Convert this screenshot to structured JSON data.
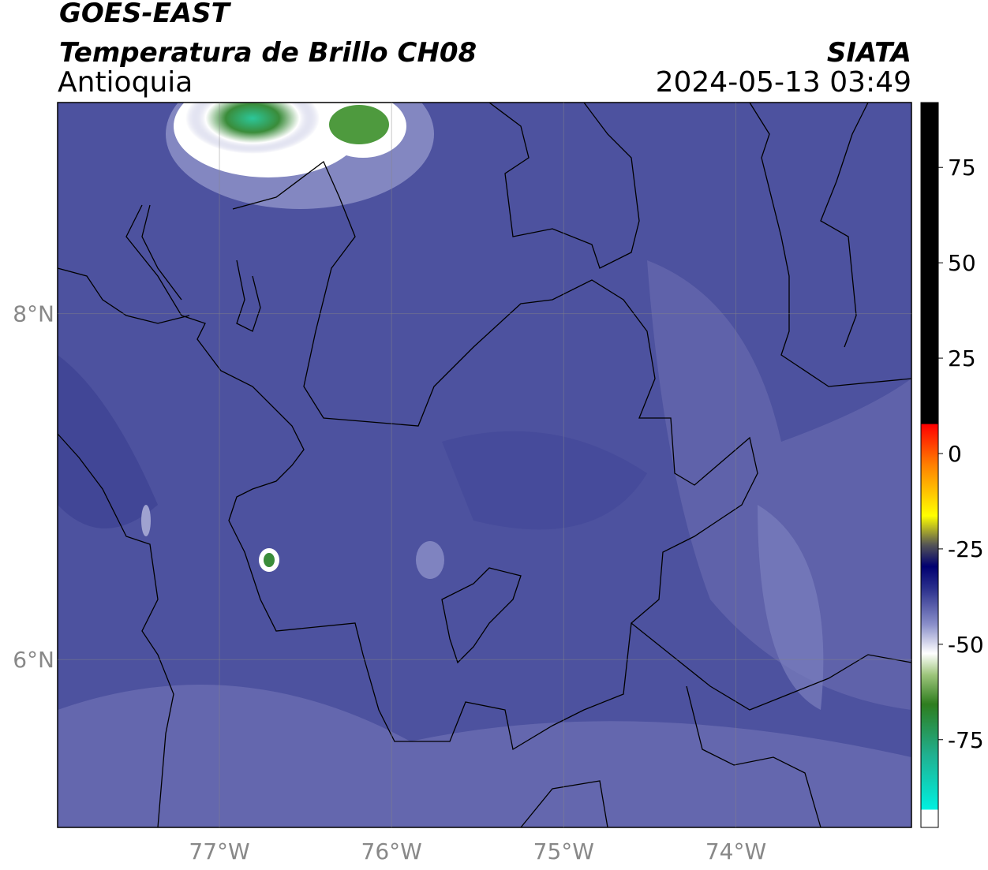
{
  "header": {
    "source": "GOES-EAST",
    "title": "Temperatura de Brillo CH08",
    "region": "Antioquia",
    "agency": "SIATA",
    "datetime": "2024-05-13 03:49"
  },
  "map": {
    "lon_lim": [
      -77.94,
      -72.98
    ],
    "lat_lim": [
      5.03,
      9.22
    ],
    "lon_ticks": [
      {
        "value": -77,
        "label": "77°W"
      },
      {
        "value": -76,
        "label": "76°W"
      },
      {
        "value": -75,
        "label": "75°W"
      },
      {
        "value": -74,
        "label": "74°W"
      }
    ],
    "lat_ticks": [
      {
        "value": 8,
        "label": "8°N"
      },
      {
        "value": 6,
        "label": "6°N"
      }
    ]
  },
  "colorbar": {
    "lim": [
      -98,
      92
    ],
    "ticks": [
      75,
      50,
      25,
      0,
      -25,
      -50,
      -75
    ]
  }
}
